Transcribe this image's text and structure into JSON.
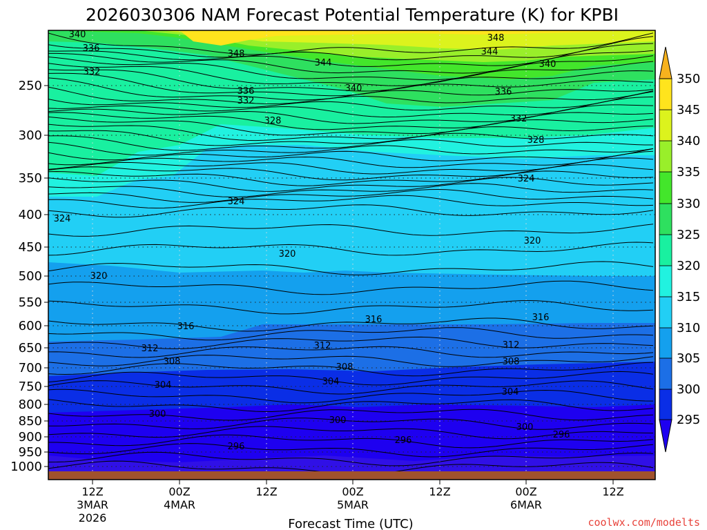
{
  "chart_data": {
    "type": "contour",
    "title": "2026030306 NAM Forecast Potential Temperature (K) for KPBI",
    "xlabel": "Forecast Time (UTC)",
    "ylabel": "",
    "y_levels_hpa": [
      250,
      300,
      350,
      400,
      450,
      500,
      550,
      600,
      650,
      700,
      750,
      800,
      850,
      900,
      950,
      1000
    ],
    "y_tick_labels": [
      "250",
      "300",
      "350",
      "400",
      "450",
      "500",
      "550",
      "600",
      "650",
      "700",
      "750",
      "800",
      "850",
      "900",
      "950",
      "1000"
    ],
    "x_ticks": [
      {
        "l1": "12Z",
        "l2": "3MAR",
        "l3": "2026"
      },
      {
        "l1": "00Z",
        "l2": "4MAR",
        "l3": ""
      },
      {
        "l1": "12Z",
        "l2": "",
        "l3": ""
      },
      {
        "l1": "00Z",
        "l2": "5MAR",
        "l3": ""
      },
      {
        "l1": "12Z",
        "l2": "",
        "l3": ""
      },
      {
        "l1": "00Z",
        "l2": "6MAR",
        "l3": ""
      },
      {
        "l1": "12Z",
        "l2": "",
        "l3": ""
      }
    ],
    "colorbar": {
      "ticks": [
        "295",
        "300",
        "305",
        "310",
        "315",
        "320",
        "325",
        "330",
        "335",
        "340",
        "345",
        "350"
      ],
      "colors": [
        "#1e00f0",
        "#0a2ee6",
        "#1c6fe6",
        "#14a0ee",
        "#22cff5",
        "#21f2e0",
        "#19f0a0",
        "#2ee05f",
        "#43e62b",
        "#99ef2a",
        "#dcf31d",
        "#ffe41d",
        "#f7b21e"
      ]
    },
    "bands_K": [
      295,
      300,
      305,
      310,
      315,
      320,
      325,
      330,
      335,
      340,
      345,
      350
    ],
    "contour_interval_K": 4,
    "contour_labels": [
      {
        "v": "340"
      },
      {
        "v": "336"
      },
      {
        "v": "332"
      },
      {
        "v": "348"
      },
      {
        "v": "344"
      },
      {
        "v": "340"
      },
      {
        "v": "336"
      },
      {
        "v": "332"
      },
      {
        "v": "328"
      },
      {
        "v": "348"
      },
      {
        "v": "344"
      },
      {
        "v": "340"
      },
      {
        "v": "336"
      },
      {
        "v": "332"
      },
      {
        "v": "328"
      },
      {
        "v": "324"
      },
      {
        "v": "324"
      },
      {
        "v": "324"
      },
      {
        "v": "320"
      },
      {
        "v": "320"
      },
      {
        "v": "320"
      },
      {
        "v": "316"
      },
      {
        "v": "316"
      },
      {
        "v": "316"
      },
      {
        "v": "312"
      },
      {
        "v": "312"
      },
      {
        "v": "312"
      },
      {
        "v": "308"
      },
      {
        "v": "308"
      },
      {
        "v": "308"
      },
      {
        "v": "304"
      },
      {
        "v": "304"
      },
      {
        "v": "304"
      },
      {
        "v": "300"
      },
      {
        "v": "300"
      },
      {
        "v": "300"
      },
      {
        "v": "296"
      },
      {
        "v": "296"
      },
      {
        "v": "296"
      }
    ],
    "credit": "coolwx.com/modelts"
  }
}
